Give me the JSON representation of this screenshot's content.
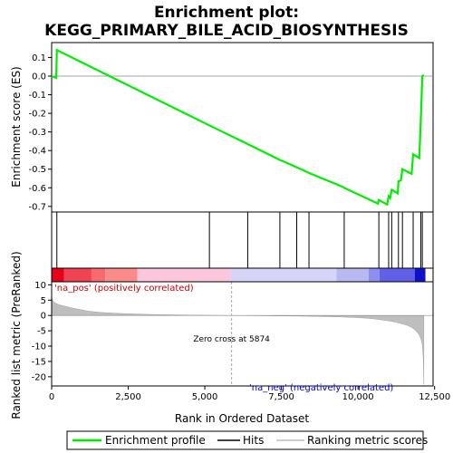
{
  "chart_data": {
    "type": "line",
    "title_line1": "Enrichment plot:",
    "title_line2": "KEGG_PRIMARY_BILE_ACID_BIOSYNTHESIS",
    "top_panel": {
      "ylabel": "Enrichment score (ES)",
      "ylim": [
        -0.73,
        0.18
      ],
      "yticks": [
        0.1,
        0.0,
        -0.1,
        -0.2,
        -0.3,
        -0.4,
        -0.5,
        -0.6,
        -0.7
      ],
      "ytick_labels": [
        "0.1",
        "0.0",
        "-0.1",
        "-0.2",
        "-0.3",
        "-0.4",
        "-0.5",
        "-0.6",
        "-0.7"
      ],
      "series": [
        {
          "name": "Enrichment profile",
          "color": "#00ee00",
          "x": [
            0,
            150,
            170,
            5150,
            6400,
            7450,
            8000,
            8400,
            9500,
            9550,
            10650,
            10680,
            10950,
            11000,
            11050,
            11100,
            11300,
            11320,
            11400,
            11450,
            11750,
            11800,
            12000,
            12050,
            12100,
            12150
          ],
          "y": [
            0.0,
            -0.01,
            0.14,
            -0.265,
            -0.365,
            -0.45,
            -0.49,
            -0.52,
            -0.595,
            -0.6,
            -0.685,
            -0.665,
            -0.69,
            -0.645,
            -0.655,
            -0.61,
            -0.63,
            -0.565,
            -0.56,
            -0.5,
            -0.525,
            -0.42,
            -0.44,
            -0.235,
            0.0,
            0.005
          ]
        }
      ]
    },
    "hits_panel": {
      "hit_color": "#000000",
      "hits": [
        170,
        5150,
        6400,
        7450,
        8000,
        8400,
        9550,
        10680,
        11000,
        11100,
        11320,
        11450,
        11800,
        12050,
        12100
      ]
    },
    "colorbar": {
      "segments": [
        {
          "from": 0,
          "to": 400,
          "color": "#e8001a"
        },
        {
          "from": 400,
          "to": 1300,
          "color": "#f04452"
        },
        {
          "from": 1300,
          "to": 1750,
          "color": "#f86a6e"
        },
        {
          "from": 1750,
          "to": 2800,
          "color": "#fb8a8a"
        },
        {
          "from": 2800,
          "to": 5850,
          "color": "#fcc6dc"
        },
        {
          "from": 5850,
          "to": 9300,
          "color": "#d6d4f8"
        },
        {
          "from": 9300,
          "to": 10350,
          "color": "#b8b8f2"
        },
        {
          "from": 10350,
          "to": 10700,
          "color": "#8e8ef0"
        },
        {
          "from": 10700,
          "to": 11850,
          "color": "#6060e8"
        },
        {
          "from": 11850,
          "to": 12200,
          "color": "#1010cc"
        }
      ]
    },
    "bottom_panel": {
      "ylabel_line1": "Ranked list metric (PreRanked)",
      "ylim": [
        -23,
        11
      ],
      "yticks": [
        10,
        5,
        0,
        -5,
        -10,
        -15,
        -20
      ],
      "ytick_labels": [
        "10",
        "5",
        "0",
        "-5",
        "-10",
        "-15",
        "-20"
      ],
      "fill_color": "#bebebe",
      "metric": {
        "x": [
          0,
          30,
          80,
          150,
          250,
          400,
          600,
          900,
          1200,
          1600,
          2000,
          2500,
          3000,
          3500,
          4000,
          4500,
          5000,
          5500,
          5874,
          6500,
          7000,
          7500,
          8000,
          8500,
          9000,
          9500,
          10000,
          10300,
          10600,
          10900,
          11200,
          11400,
          11600,
          11750,
          11850,
          11950,
          12000,
          12050,
          12100,
          12130,
          12150
        ],
        "y": [
          6.2,
          5.0,
          4.3,
          3.9,
          3.5,
          3.1,
          2.6,
          2.0,
          1.4,
          1.0,
          0.75,
          0.55,
          0.4,
          0.28,
          0.2,
          0.13,
          0.08,
          0.03,
          0.0,
          -0.05,
          -0.1,
          -0.15,
          -0.2,
          -0.28,
          -0.38,
          -0.5,
          -0.7,
          -0.9,
          -1.2,
          -1.6,
          -2.1,
          -2.6,
          -3.2,
          -3.9,
          -4.6,
          -5.7,
          -6.5,
          -7.5,
          -9.5,
          -14.0,
          -22.5
        ]
      },
      "zero_cross_x": 5874,
      "zero_cross_label": "Zero cross at 5874",
      "pos_label": "'na_pos' (positively correlated)",
      "neg_label": "'na_neg' (negatively correlated)"
    },
    "x_axis": {
      "xlabel": "Rank in Ordered Dataset",
      "xlim": [
        0,
        12450
      ],
      "xticks": [
        0,
        2500,
        5000,
        7500,
        10000,
        12500
      ],
      "xtick_labels": [
        "0",
        "2,500",
        "5,000",
        "7,500",
        "10,000",
        "12,500"
      ]
    },
    "legend": {
      "placement": "bottom",
      "entries": [
        {
          "label": "Enrichment profile",
          "color": "#00ee00"
        },
        {
          "label": "Hits",
          "color": "#000000"
        },
        {
          "label": "Ranking metric scores",
          "color": "#bebebe"
        }
      ]
    }
  }
}
